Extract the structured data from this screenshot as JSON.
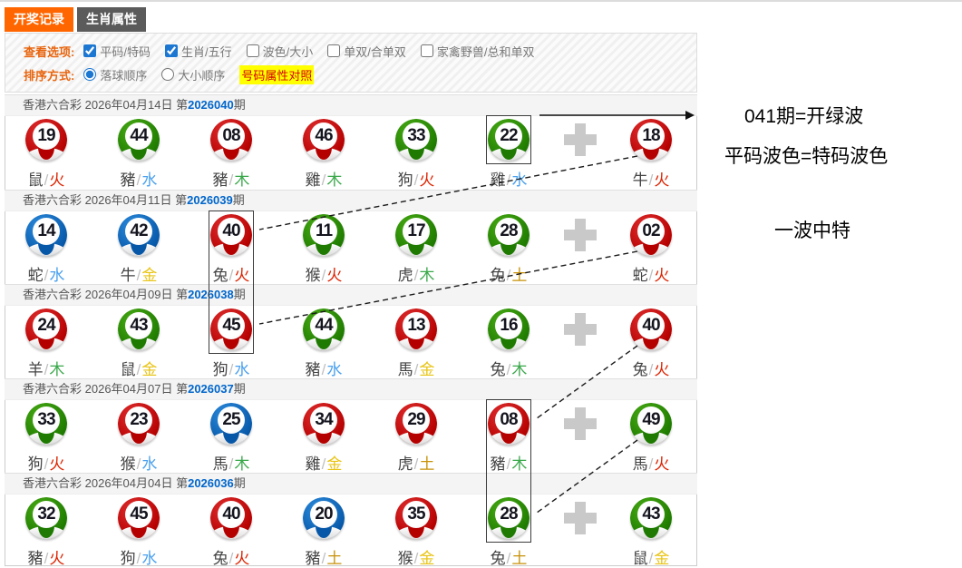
{
  "tabs": [
    {
      "label": "开奖记录",
      "active": true
    },
    {
      "label": "生肖属性",
      "active": false
    }
  ],
  "options": {
    "view_label": "查看选项:",
    "checkboxes": [
      {
        "label": "平码/特码",
        "checked": true
      },
      {
        "label": "生肖/五行",
        "checked": true
      },
      {
        "label": "波色/大小",
        "checked": false
      },
      {
        "label": "单双/合单双",
        "checked": false
      },
      {
        "label": "家禽野兽/总和单双",
        "checked": false
      }
    ],
    "sort_label": "排序方式:",
    "radios": [
      {
        "label": "落球顺序",
        "selected": true
      },
      {
        "label": "大小顺序",
        "selected": false
      }
    ],
    "compare_link": "号码属性对照"
  },
  "lottery_name": "香港六合彩",
  "issue_prefix": "第",
  "issue_suffix": "期",
  "periods": [
    {
      "date": "2026年04月14日",
      "issue": "2026040",
      "balls": [
        {
          "num": "19",
          "color": "red",
          "zodiac": "鼠",
          "element": "火"
        },
        {
          "num": "44",
          "color": "green",
          "zodiac": "豬",
          "element": "水"
        },
        {
          "num": "08",
          "color": "red",
          "zodiac": "豬",
          "element": "木"
        },
        {
          "num": "46",
          "color": "red",
          "zodiac": "雞",
          "element": "木"
        },
        {
          "num": "33",
          "color": "green",
          "zodiac": "狗",
          "element": "火"
        },
        {
          "num": "22",
          "color": "green",
          "zodiac": "雞",
          "element": "水"
        }
      ],
      "special": {
        "num": "18",
        "color": "red",
        "zodiac": "牛",
        "element": "火"
      }
    },
    {
      "date": "2026年04月11日",
      "issue": "2026039",
      "balls": [
        {
          "num": "14",
          "color": "blue",
          "zodiac": "蛇",
          "element": "水"
        },
        {
          "num": "42",
          "color": "blue",
          "zodiac": "牛",
          "element": "金"
        },
        {
          "num": "40",
          "color": "red",
          "zodiac": "兔",
          "element": "火"
        },
        {
          "num": "11",
          "color": "green",
          "zodiac": "猴",
          "element": "火"
        },
        {
          "num": "17",
          "color": "green",
          "zodiac": "虎",
          "element": "木"
        },
        {
          "num": "28",
          "color": "green",
          "zodiac": "兔",
          "element": "土"
        }
      ],
      "special": {
        "num": "02",
        "color": "red",
        "zodiac": "蛇",
        "element": "火"
      }
    },
    {
      "date": "2026年04月09日",
      "issue": "2026038",
      "balls": [
        {
          "num": "24",
          "color": "red",
          "zodiac": "羊",
          "element": "木"
        },
        {
          "num": "43",
          "color": "green",
          "zodiac": "鼠",
          "element": "金"
        },
        {
          "num": "45",
          "color": "red",
          "zodiac": "狗",
          "element": "水"
        },
        {
          "num": "44",
          "color": "green",
          "zodiac": "豬",
          "element": "水"
        },
        {
          "num": "13",
          "color": "red",
          "zodiac": "馬",
          "element": "金"
        },
        {
          "num": "16",
          "color": "green",
          "zodiac": "兔",
          "element": "木"
        }
      ],
      "special": {
        "num": "40",
        "color": "red",
        "zodiac": "兔",
        "element": "火"
      }
    },
    {
      "date": "2026年04月07日",
      "issue": "2026037",
      "balls": [
        {
          "num": "33",
          "color": "green",
          "zodiac": "狗",
          "element": "火"
        },
        {
          "num": "23",
          "color": "red",
          "zodiac": "猴",
          "element": "水"
        },
        {
          "num": "25",
          "color": "blue",
          "zodiac": "馬",
          "element": "木"
        },
        {
          "num": "34",
          "color": "red",
          "zodiac": "雞",
          "element": "金"
        },
        {
          "num": "29",
          "color": "red",
          "zodiac": "虎",
          "element": "土"
        },
        {
          "num": "08",
          "color": "red",
          "zodiac": "豬",
          "element": "木"
        }
      ],
      "special": {
        "num": "49",
        "color": "green",
        "zodiac": "馬",
        "element": "火"
      }
    },
    {
      "date": "2026年04月04日",
      "issue": "2026036",
      "balls": [
        {
          "num": "32",
          "color": "green",
          "zodiac": "豬",
          "element": "火"
        },
        {
          "num": "45",
          "color": "red",
          "zodiac": "狗",
          "element": "水"
        },
        {
          "num": "40",
          "color": "red",
          "zodiac": "兔",
          "element": "火"
        },
        {
          "num": "20",
          "color": "blue",
          "zodiac": "豬",
          "element": "土"
        },
        {
          "num": "35",
          "color": "red",
          "zodiac": "猴",
          "element": "金"
        },
        {
          "num": "28",
          "color": "green",
          "zodiac": "兔",
          "element": "土"
        }
      ],
      "special": {
        "num": "43",
        "color": "green",
        "zodiac": "鼠",
        "element": "金"
      }
    }
  ],
  "annotations": [
    "041期=开绿波",
    "平码波色=特码波色",
    "一波中特"
  ],
  "overlay": {
    "boxes": [
      {
        "period": 0,
        "ball": 5,
        "rows": 1
      },
      {
        "period": 1,
        "ball": 2,
        "rows": 2
      },
      {
        "period": 3,
        "ball": 5,
        "rows": 2
      }
    ],
    "links": [
      {
        "from_period": 0,
        "to_period": 1,
        "to_ball": 2
      },
      {
        "from_period": 1,
        "to_period": 2,
        "to_ball": 2
      },
      {
        "from_period": 2,
        "to_period": 3,
        "to_ball": 5
      },
      {
        "from_period": 3,
        "to_period": 4,
        "to_ball": 5
      }
    ],
    "note_arrow": true
  },
  "colors": {
    "ball": {
      "red": "#cf0a0a",
      "green": "#2e8f06",
      "blue": "#0a6bc4"
    },
    "element": {
      "火": "#dd2200",
      "水": "#4aa0ee",
      "木": "#3aa84a",
      "金": "#e8c414",
      "土": "#c8920a"
    },
    "accent_orange": "#ff6600",
    "tab_gray": "#5b5b5b",
    "issue_blue": "#0066cc",
    "highlight_bg": "#ffff00",
    "highlight_text": "#d40000"
  }
}
